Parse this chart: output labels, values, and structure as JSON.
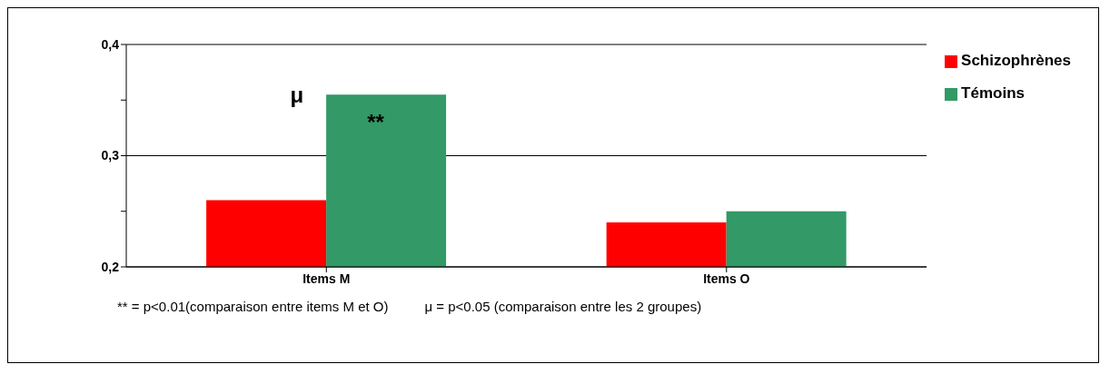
{
  "chart_data": {
    "type": "bar",
    "categories": [
      "Items M",
      "Items O"
    ],
    "series": [
      {
        "name": "Schizophrènes",
        "color": "#ff0000",
        "values": [
          0.26,
          0.24
        ]
      },
      {
        "name": "Témoins",
        "color": "#339966",
        "values": [
          0.355,
          0.25
        ]
      }
    ],
    "ylim": [
      0.2,
      0.4
    ],
    "yticks": [
      {
        "value": 0.2,
        "label": "0,2"
      },
      {
        "value": 0.25,
        "label": null
      },
      {
        "value": 0.3,
        "label": "0,3"
      },
      {
        "value": 0.35,
        "label": null
      },
      {
        "value": 0.4,
        "label": "0,4"
      }
    ],
    "grid": "y",
    "legend": "top right",
    "annotations": [
      {
        "text": "μ",
        "x": "Items M",
        "y": 0.355
      },
      {
        "text": "**",
        "x": "Items M",
        "y": 0.33
      },
      "** = p<0.01(comparaison entre items M et O)",
      "μ = p<0.05 (comparaison entre les 2 groupes)"
    ]
  }
}
